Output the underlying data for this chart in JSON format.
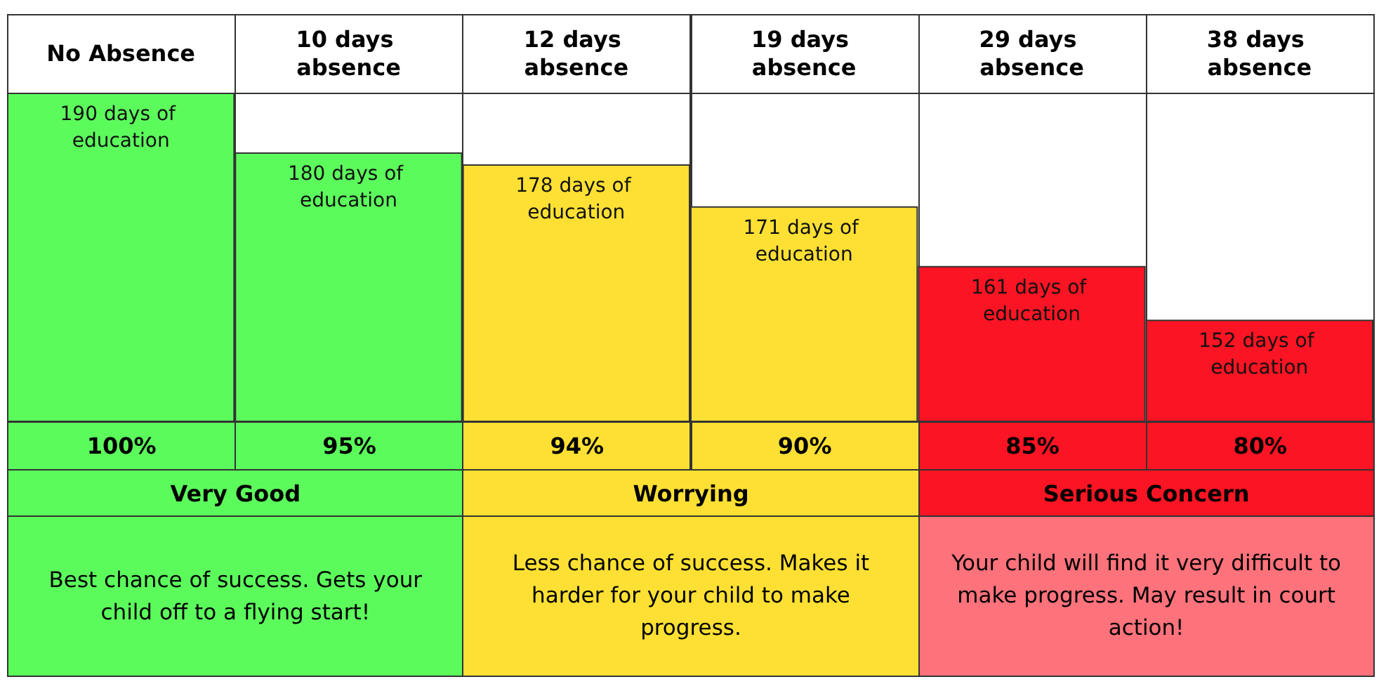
{
  "chart_data": {
    "type": "bar",
    "categories": [
      "No Absence",
      "10 days absence",
      "12 days absence",
      "19 days absence",
      "29 days absence",
      "38 days absence"
    ],
    "values": [
      190,
      180,
      178,
      171,
      161,
      152
    ],
    "colors": [
      "#5cfb5c",
      "#5cfb5c",
      "#fde033",
      "#fde033",
      "#fb1423",
      "#fb1423"
    ],
    "value_labels": [
      "190 days of education",
      "180 days of education",
      "178 days of education",
      "171 days of education",
      "161 days of education",
      "152 days of education"
    ],
    "ylim": [
      135,
      190
    ],
    "tick_labels": "x",
    "grid": false,
    "annotations": [
      "100%",
      "95%",
      "94%",
      "90%",
      "85%",
      "80%",
      "Very Good",
      "Worrying",
      "Serious Concern",
      "Best chance of success. Gets your child off to a flying start!",
      "Less chance of success. Makes it harder for your child to make progress.",
      "Your child will find it very difficult to make progress. May result in court action!"
    ]
  }
}
